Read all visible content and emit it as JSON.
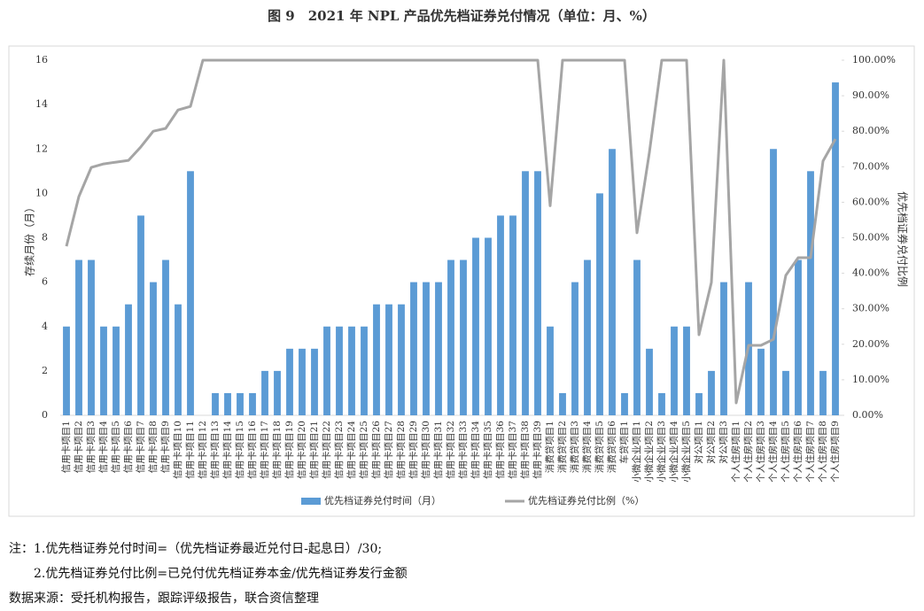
{
  "chart_data": {
    "type": "bar-line",
    "title": "图 9　2021 年 NPL 产品优先档证券兑付情况（单位：月、%）",
    "y_label": "存续月份（月）",
    "y2_label": "优先档证券兑付比例",
    "categories": [
      "信用卡项目1",
      "信用卡项目2",
      "信用卡项目3",
      "信用卡项目4",
      "信用卡项目5",
      "信用卡项目6",
      "信用卡项目7",
      "信用卡项目8",
      "信用卡项目9",
      "信用卡项目10",
      "信用卡项目11",
      "信用卡项目12",
      "信用卡项目13",
      "信用卡项目14",
      "信用卡项目15",
      "信用卡项目16",
      "信用卡项目17",
      "信用卡项目18",
      "信用卡项目19",
      "信用卡项目20",
      "信用卡项目21",
      "信用卡项目22",
      "信用卡项目23",
      "信用卡项目24",
      "信用卡项目25",
      "信用卡项目26",
      "信用卡项目27",
      "信用卡项目28",
      "信用卡项目29",
      "信用卡项目30",
      "信用卡项目31",
      "信用卡项目32",
      "信用卡项目33",
      "信用卡项目34",
      "信用卡项目35",
      "信用卡项目36",
      "信用卡项目37",
      "信用卡项目38",
      "信用卡项目39",
      "消费贷项目1",
      "消费贷项目2",
      "消费贷项目3",
      "消费贷项目4",
      "消费贷项目5",
      "消费贷项目6",
      "车贷项目1",
      "小微企业项目1",
      "小微企业项目2",
      "小微企业项目3",
      "小微企业项目4",
      "小微企业项目5",
      "对公项目1",
      "对公项目2",
      "对公项目3",
      "个人住房项目1",
      "个人住房项目2",
      "个人住房项目3",
      "个人住房项目4",
      "个人住房项目5",
      "个人住房项目6",
      "个人住房项目7",
      "个人住房项目8",
      "个人住房项目9"
    ],
    "series": [
      {
        "name": "优先档证券兑付时间（月）",
        "type": "bar",
        "color": "#5b9bd5",
        "axis": "y",
        "values": [
          4,
          7,
          7,
          4,
          4,
          5,
          9,
          6,
          7,
          5,
          11,
          0,
          1,
          1,
          1,
          1,
          2,
          2,
          3,
          3,
          3,
          4,
          4,
          4,
          4,
          5,
          5,
          5,
          6,
          6,
          6,
          7,
          7,
          8,
          8,
          9,
          9,
          11,
          11,
          4,
          1,
          6,
          7,
          10,
          12,
          1,
          7,
          3,
          1,
          4,
          4,
          1,
          2,
          6,
          0,
          6,
          3,
          12,
          2,
          7,
          11,
          2,
          15
        ]
      },
      {
        "name": "优先档证券兑付比例（%）",
        "type": "line",
        "color": "#a5a5a5",
        "axis": "y2",
        "values": [
          47.6,
          61.6,
          69.8,
          70.8,
          71.3,
          71.8,
          75.6,
          80,
          80.8,
          86,
          87,
          100,
          100,
          100,
          100,
          100,
          100,
          100,
          100,
          100,
          100,
          100,
          100,
          100,
          100,
          100,
          100,
          100,
          100,
          100,
          100,
          100,
          100,
          100,
          100,
          100,
          100,
          100,
          100,
          59,
          100,
          100,
          100,
          100,
          100,
          100,
          51.4,
          74,
          100,
          100,
          100,
          22.7,
          37.4,
          100,
          3.5,
          19.7,
          19.7,
          21.4,
          39.4,
          44.4,
          44.4,
          71.6,
          77.8
        ]
      }
    ],
    "ylim": [
      0,
      16
    ],
    "yticks": [
      0,
      2,
      4,
      6,
      8,
      10,
      12,
      14,
      16
    ],
    "y2lim": [
      0,
      100
    ],
    "y2ticks": [
      {
        "value": 0,
        "label": "0.00%"
      },
      {
        "value": 10,
        "label": "10.00%"
      },
      {
        "value": 20,
        "label": "20.00%"
      },
      {
        "value": 30,
        "label": "30.00%"
      },
      {
        "value": 40,
        "label": "40.00%"
      },
      {
        "value": 50,
        "label": "50.00%"
      },
      {
        "value": 60,
        "label": "60.00%"
      },
      {
        "value": 70,
        "label": "70.00%"
      },
      {
        "value": 80,
        "label": "80.00%"
      },
      {
        "value": 90,
        "label": "90.00%"
      },
      {
        "value": 100,
        "label": "100.00%"
      }
    ],
    "legend": "bottom"
  },
  "notes": [
    "注：1.优先档证券兑付时间=（优先档证券最近兑付日-起息日）/30;",
    "2.优先档证券兑付比例=已兑付优先档证券本金/优先档证券发行金额"
  ],
  "source": "数据来源：受托机构报告，跟踪评级报告，联合资信整理"
}
